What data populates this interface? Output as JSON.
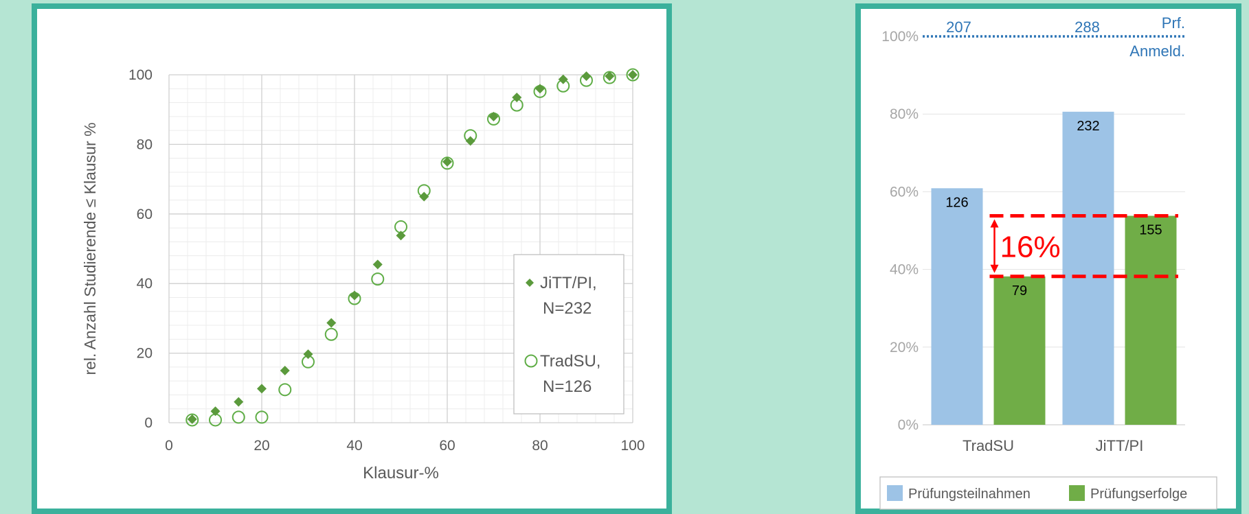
{
  "chart_data": [
    {
      "type": "scatter",
      "xlabel": "Klausur-%",
      "ylabel": "rel. Anzahl Studierende ≤ Klausur %",
      "xlim": [
        0,
        100
      ],
      "ylim": [
        0,
        100
      ],
      "x_ticks": [
        0,
        20,
        40,
        60,
        80,
        100
      ],
      "y_ticks": [
        0,
        20,
        40,
        60,
        80,
        100
      ],
      "grid": true,
      "legend_position": "bottom-right",
      "series": [
        {
          "name_lines": [
            "JiTT/PI,",
            "N=232"
          ],
          "marker": "filled-diamond",
          "color": "#5b9a3c",
          "points": [
            [
              5,
              1
            ],
            [
              10,
              3.3
            ],
            [
              15,
              6
            ],
            [
              20,
              9.8
            ],
            [
              25,
              15
            ],
            [
              30,
              19.7
            ],
            [
              35,
              28.7
            ],
            [
              40,
              36.6
            ],
            [
              45,
              45.5
            ],
            [
              50,
              53.8
            ],
            [
              55,
              65
            ],
            [
              60,
              75
            ],
            [
              65,
              81
            ],
            [
              70,
              88
            ],
            [
              75,
              93.5
            ],
            [
              80,
              96
            ],
            [
              85,
              98.7
            ],
            [
              90,
              99.6
            ],
            [
              95,
              99.6
            ],
            [
              100,
              100
            ]
          ]
        },
        {
          "name_lines": [
            "TradSU,",
            "N=126"
          ],
          "marker": "open-circle",
          "color": "#5fad46",
          "points": [
            [
              5,
              0.8
            ],
            [
              10,
              0.8
            ],
            [
              15,
              1.6
            ],
            [
              20,
              1.6
            ],
            [
              25,
              9.5
            ],
            [
              30,
              17.5
            ],
            [
              35,
              25.4
            ],
            [
              40,
              35.7
            ],
            [
              45,
              41.3
            ],
            [
              50,
              56.3
            ],
            [
              55,
              66.7
            ],
            [
              60,
              74.6
            ],
            [
              65,
              82.5
            ],
            [
              70,
              87.3
            ],
            [
              75,
              91.3
            ],
            [
              80,
              95.2
            ],
            [
              85,
              96.8
            ],
            [
              90,
              98.4
            ],
            [
              95,
              99.2
            ],
            [
              100,
              100
            ]
          ]
        }
      ]
    },
    {
      "type": "bar",
      "categories": [
        "TradSU",
        "JiTT/PI"
      ],
      "ylim": [
        0,
        100
      ],
      "y_ticks": [
        "0%",
        "20%",
        "40%",
        "60%",
        "80%",
        "100%"
      ],
      "series": [
        {
          "name": "Prüfungsteilnahmen",
          "color": "#9dc3e6",
          "values": [
            60.9,
            80.6
          ],
          "labels": [
            "126",
            "232"
          ]
        },
        {
          "name": "Prüfungserfolge",
          "color": "#70ad47",
          "values": [
            38.2,
            53.8
          ],
          "labels": [
            "79",
            "155"
          ]
        }
      ],
      "registration_line": {
        "value": 100,
        "color": "#2e75b6",
        "counts": [
          "207",
          "288"
        ],
        "label_top": "Prf.",
        "label_bottom": "Anmeld."
      },
      "difference_annotation": {
        "text": "16%",
        "upper": 53.8,
        "lower": 38.2,
        "color": "#ff0000"
      },
      "legend_position": "bottom"
    }
  ]
}
